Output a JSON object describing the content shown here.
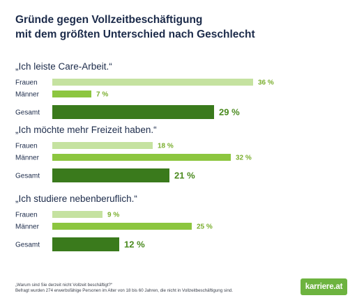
{
  "title_lines": [
    "Gründe gegen Vollzeitbeschäftigung",
    "mit dem größten Unterschied nach Geschlecht"
  ],
  "colors": {
    "frauen": "#c5e2a0",
    "maenner": "#8cc63f",
    "gesamt": "#3a7a1c",
    "value_light": "#7aae2e",
    "value_dark": "#4a8a1e",
    "text": "#1c2b4a"
  },
  "footer": {
    "line1": "„Warum sind Sie derzeit nicht Vollzeit beschäftigt?“",
    "line2": "Befragt wurden 274 erwerbsfähige Personen im Alter von 18 bis 60 Jahren, die nicht in Vollzeitbeschäftigung sind."
  },
  "logo": "karriere.at",
  "chart_data": {
    "type": "bar",
    "orientation": "horizontal",
    "value_unit": "%",
    "xlim": [
      0,
      40
    ],
    "groups": [
      {
        "title": "„Ich leiste Care-Arbeit.“",
        "rows": [
          {
            "label": "Frauen",
            "value": 36,
            "value_label": "36 %"
          },
          {
            "label": "Männer",
            "value": 7,
            "value_label": "7 %"
          },
          {
            "label": "Gesamt",
            "value": 29,
            "value_label": "29 %"
          }
        ]
      },
      {
        "title": "„Ich möchte mehr Freizeit haben.“",
        "rows": [
          {
            "label": "Frauen",
            "value": 18,
            "value_label": "18 %"
          },
          {
            "label": "Männer",
            "value": 32,
            "value_label": "32 %"
          },
          {
            "label": "Gesamt",
            "value": 21,
            "value_label": "21 %"
          }
        ]
      },
      {
        "title": "„Ich studiere nebenberuflich.“",
        "rows": [
          {
            "label": "Frauen",
            "value": 9,
            "value_label": "9 %"
          },
          {
            "label": "Männer",
            "value": 25,
            "value_label": "25 %"
          },
          {
            "label": "Gesamt",
            "value": 12,
            "value_label": "12 %"
          }
        ]
      }
    ]
  }
}
